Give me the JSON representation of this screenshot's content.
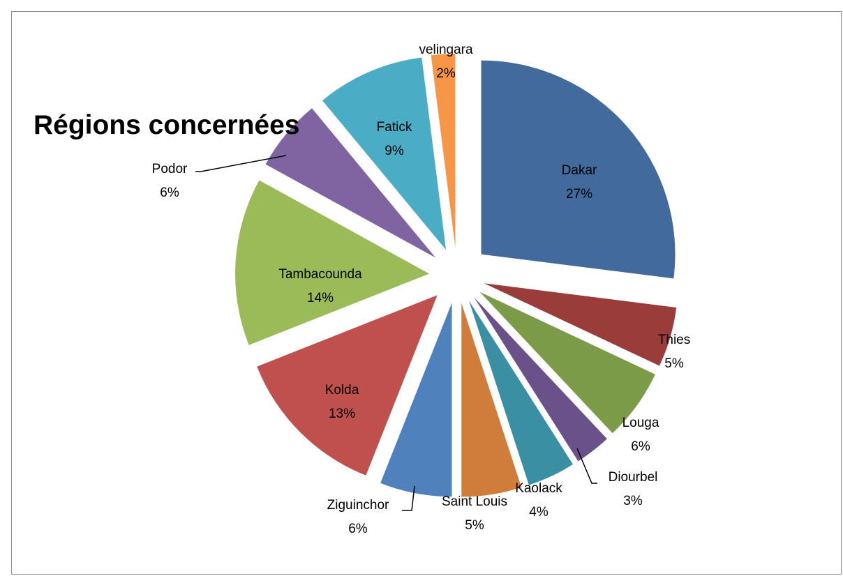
{
  "chart_data": {
    "type": "pie",
    "title": "Régions concernées",
    "slices": [
      {
        "name": "Dakar",
        "label": "27%",
        "value": 27,
        "color": "#426a9c"
      },
      {
        "name": "Thies",
        "label": "5%",
        "value": 5,
        "color": "#9a3c3a"
      },
      {
        "name": "Louga",
        "label": "6%",
        "value": 6,
        "color": "#7c9b49"
      },
      {
        "name": "Diourbel",
        "label": "3%",
        "value": 3,
        "color": "#6a5189"
      },
      {
        "name": "Kaolack",
        "label": "4%",
        "value": 4,
        "color": "#3b8fa3"
      },
      {
        "name": "Saint Louis",
        "label": "5%",
        "value": 5,
        "color": "#d07d3b"
      },
      {
        "name": "Ziguinchor",
        "label": "6%",
        "value": 6,
        "color": "#4f81bd"
      },
      {
        "name": "Kolda",
        "label": "13%",
        "value": 13,
        "color": "#c0504d"
      },
      {
        "name": "Tambacounda",
        "label": "14%",
        "value": 14,
        "color": "#9bbb59"
      },
      {
        "name": "Podor",
        "label": "6%",
        "value": 6,
        "color": "#8064a2"
      },
      {
        "name": "Fatick",
        "label": "9%",
        "value": 9,
        "color": "#4bacc6"
      },
      {
        "name": "velingara",
        "label": "2%",
        "value": 2,
        "color": "#f79646"
      }
    ],
    "legend": "none",
    "label_style": "category name and percentage"
  }
}
